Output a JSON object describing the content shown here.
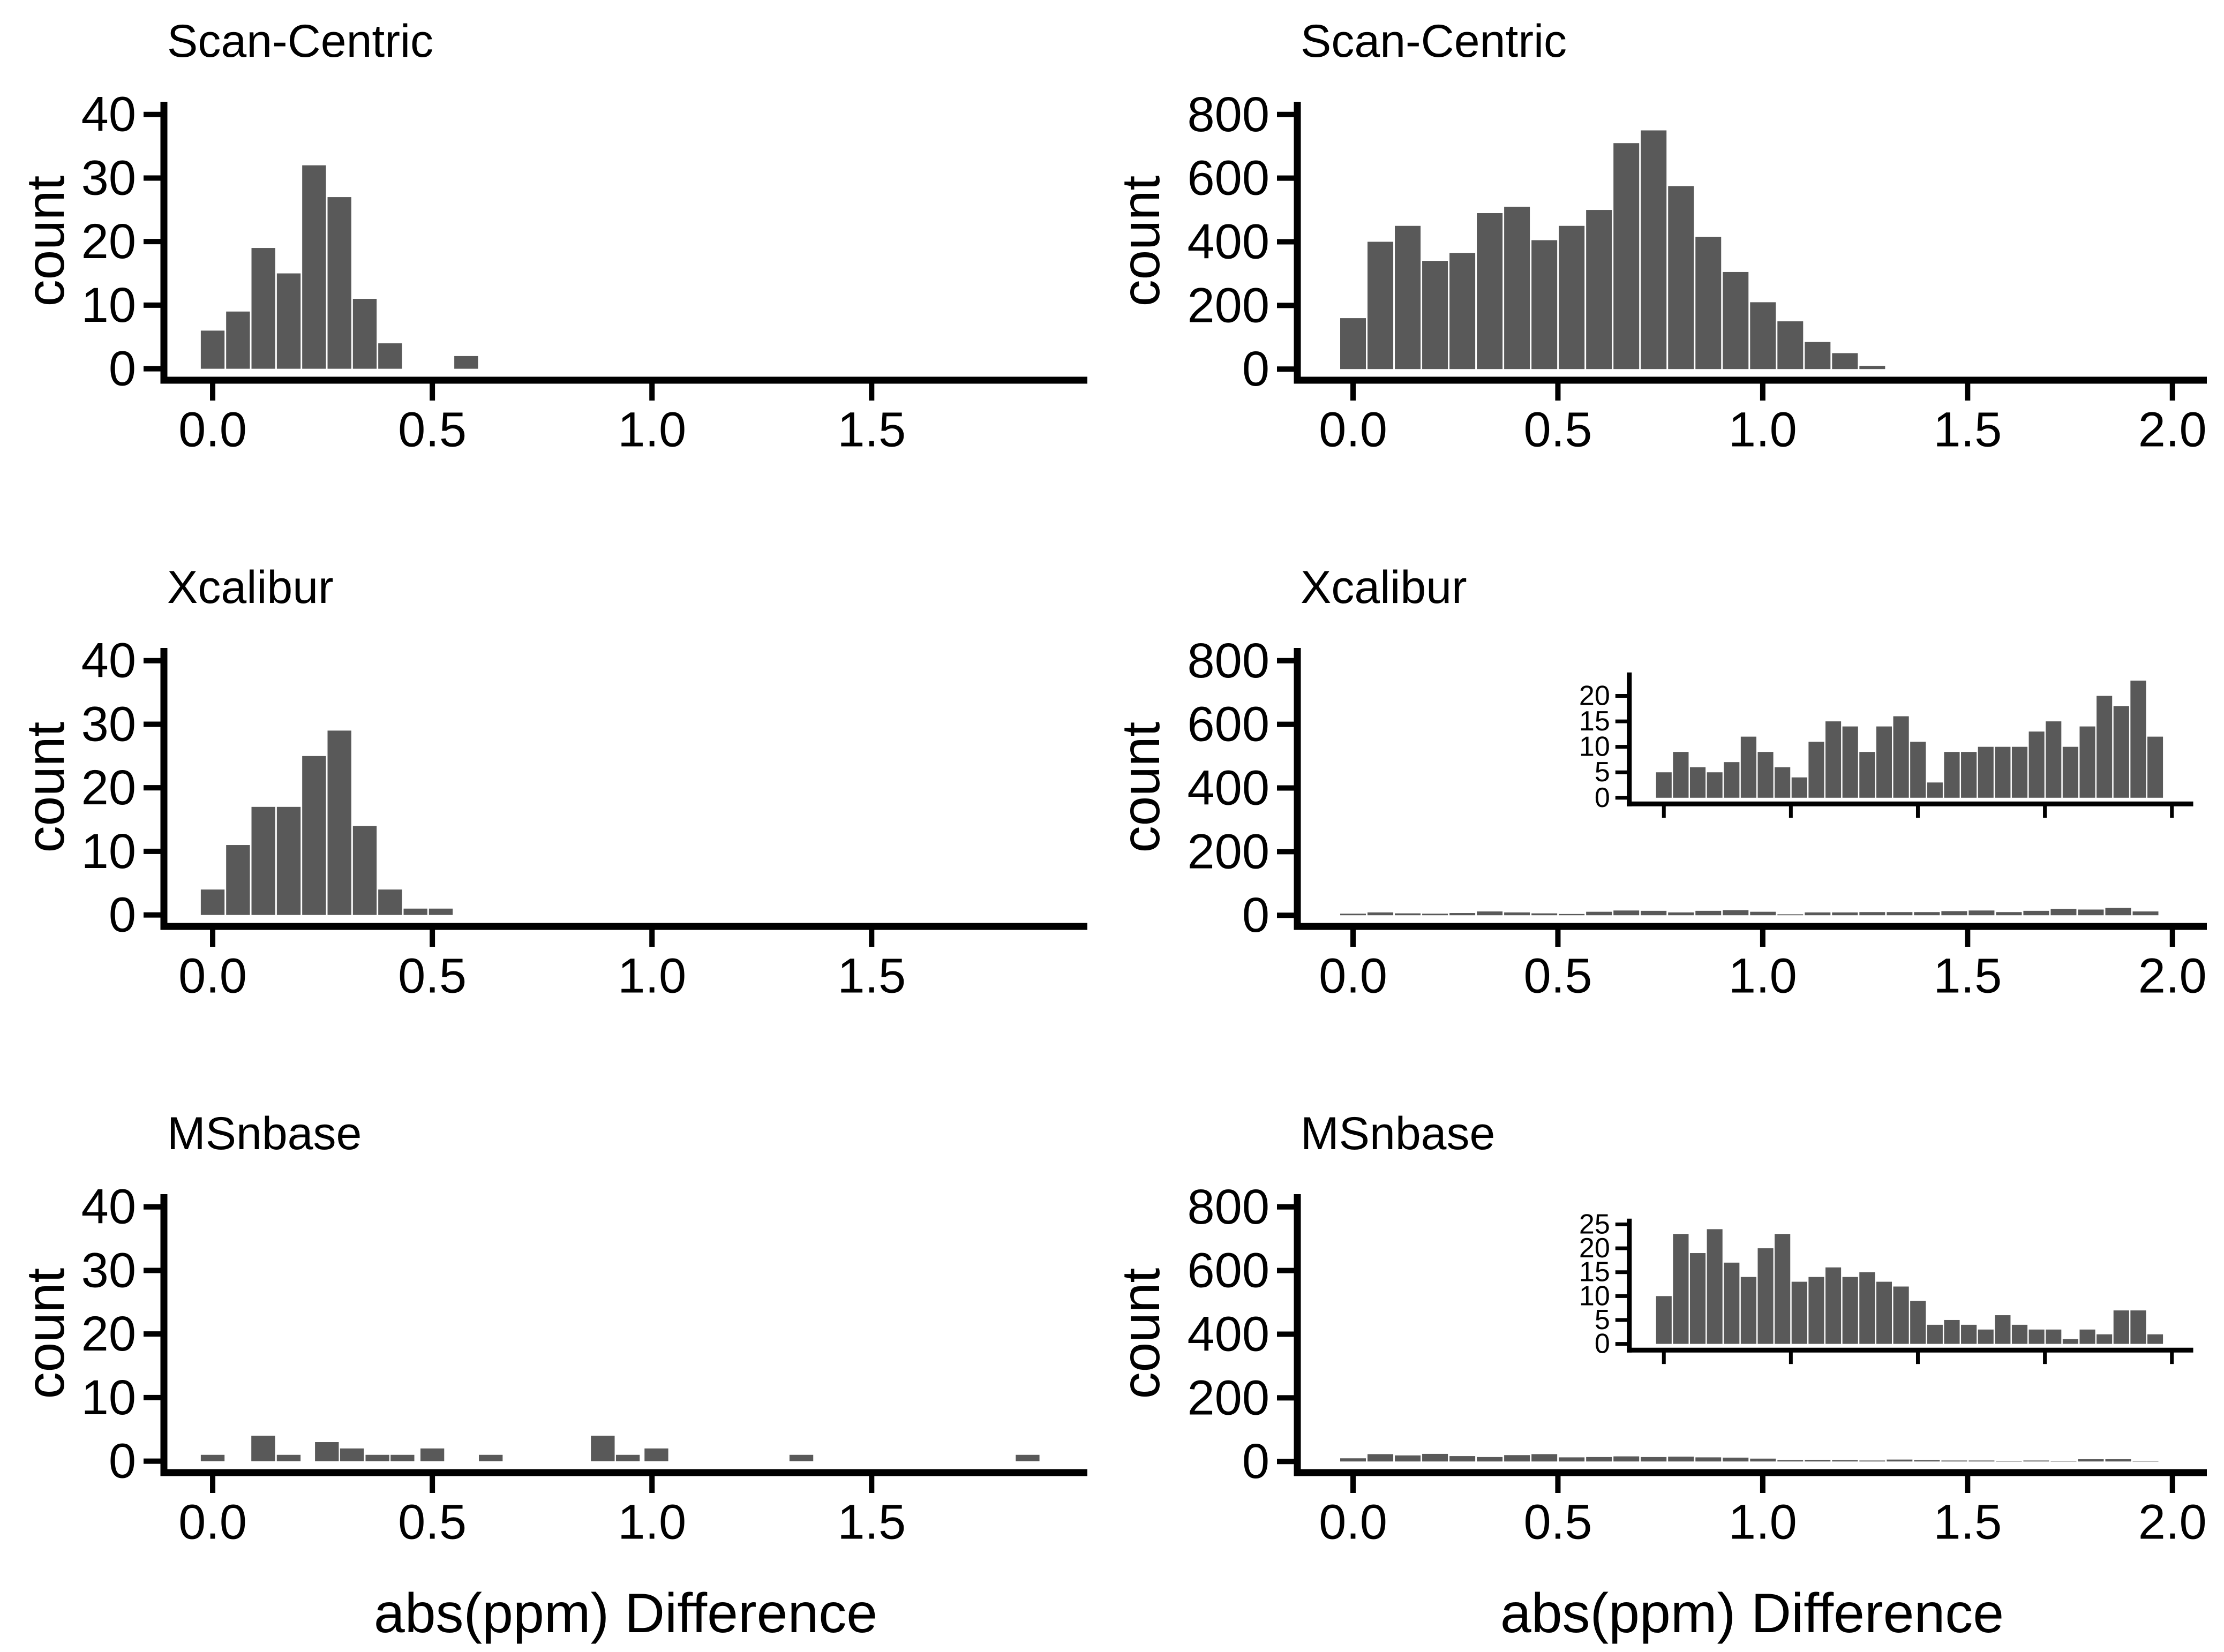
{
  "figure": {
    "background": "#ffffff",
    "bar_fill": "#595959",
    "axis_color": "#000000",
    "text_color": "#000000",
    "ylabel": "count",
    "xlabel": "abs(ppm) Difference"
  },
  "chart_data": [
    {
      "id": "scan-centric-small",
      "type": "bar",
      "title": "Scan-Centric",
      "col": 0,
      "row": 0,
      "ylabel": "count",
      "xlabel": "abs(ppm) Difference",
      "xlim": [
        -0.111,
        1.991
      ],
      "ylim": [
        -1.8,
        42
      ],
      "xticks": [
        0,
        0.5,
        1.0,
        1.5
      ],
      "xtick_labels": [
        "0.0",
        "0.5",
        "1.0",
        "1.5"
      ],
      "yticks": [
        0,
        10,
        20,
        30,
        40
      ],
      "ytick_labels": [
        "0",
        "10",
        "20",
        "30",
        "40"
      ],
      "bin_width": 0.0577,
      "bars": [
        [
          0.0,
          6
        ],
        [
          0.0577,
          9
        ],
        [
          0.1154,
          19
        ],
        [
          0.1731,
          15
        ],
        [
          0.2308,
          32
        ],
        [
          0.2885,
          27
        ],
        [
          0.3462,
          11
        ],
        [
          0.4039,
          4
        ],
        [
          0.577,
          2
        ]
      ],
      "inset": null
    },
    {
      "id": "scan-centric-all",
      "type": "bar",
      "title": "Scan-Centric",
      "col": 1,
      "row": 0,
      "ylabel": "count",
      "xlabel": "abs(ppm) Difference",
      "xlim": [
        -0.136,
        2.084
      ],
      "ylim": [
        -35,
        840
      ],
      "xticks": [
        0,
        0.5,
        1.0,
        1.5,
        2.0
      ],
      "xtick_labels": [
        "0.0",
        "0.5",
        "1.0",
        "1.5",
        "2.0"
      ],
      "yticks": [
        0,
        200,
        400,
        600,
        800
      ],
      "ytick_labels": [
        "0",
        "200",
        "400",
        "600",
        "800"
      ],
      "bin_width": 0.0667,
      "bars": [
        [
          0.0,
          160
        ],
        [
          0.0667,
          400
        ],
        [
          0.1334,
          450
        ],
        [
          0.2001,
          340
        ],
        [
          0.2668,
          365
        ],
        [
          0.3335,
          490
        ],
        [
          0.4002,
          510
        ],
        [
          0.4669,
          405
        ],
        [
          0.5336,
          450
        ],
        [
          0.6003,
          500
        ],
        [
          0.667,
          710
        ],
        [
          0.7337,
          750
        ],
        [
          0.8004,
          575
        ],
        [
          0.8671,
          415
        ],
        [
          0.9338,
          305
        ],
        [
          1.0005,
          210
        ],
        [
          1.0672,
          150
        ],
        [
          1.1339,
          85
        ],
        [
          1.2006,
          50
        ],
        [
          1.2673,
          10
        ]
      ],
      "inset": null
    },
    {
      "id": "xcalibur-small",
      "type": "bar",
      "title": "Xcalibur",
      "col": 0,
      "row": 1,
      "ylabel": "count",
      "xlabel": "abs(ppm) Difference",
      "xlim": [
        -0.111,
        1.991
      ],
      "ylim": [
        -1.8,
        42
      ],
      "xticks": [
        0,
        0.5,
        1.0,
        1.5
      ],
      "xtick_labels": [
        "0.0",
        "0.5",
        "1.0",
        "1.5"
      ],
      "yticks": [
        0,
        10,
        20,
        30,
        40
      ],
      "ytick_labels": [
        "0",
        "10",
        "20",
        "30",
        "40"
      ],
      "bin_width": 0.0577,
      "bars": [
        [
          0.0,
          4
        ],
        [
          0.0577,
          11
        ],
        [
          0.1154,
          17
        ],
        [
          0.1731,
          17
        ],
        [
          0.2308,
          25
        ],
        [
          0.2885,
          29
        ],
        [
          0.3462,
          14
        ],
        [
          0.4039,
          4
        ],
        [
          0.4616,
          1
        ],
        [
          0.5193,
          1
        ]
      ],
      "inset": null
    },
    {
      "id": "xcalibur-all",
      "type": "bar",
      "title": "Xcalibur",
      "col": 1,
      "row": 1,
      "ylabel": "count",
      "xlabel": "abs(ppm) Difference",
      "xlim": [
        -0.136,
        2.084
      ],
      "ylim": [
        -35,
        840
      ],
      "xticks": [
        0,
        0.5,
        1.0,
        1.5,
        2.0
      ],
      "xtick_labels": [
        "0.0",
        "0.5",
        "1.0",
        "1.5",
        "2.0"
      ],
      "yticks": [
        0,
        200,
        400,
        600,
        800
      ],
      "ytick_labels": [
        "0",
        "200",
        "400",
        "600",
        "800"
      ],
      "bin_width": 0.0667,
      "bars": [
        [
          0.0,
          5
        ],
        [
          0.0667,
          9
        ],
        [
          0.1334,
          6
        ],
        [
          0.2001,
          5
        ],
        [
          0.2668,
          7
        ],
        [
          0.3335,
          12
        ],
        [
          0.4002,
          9
        ],
        [
          0.4669,
          6
        ],
        [
          0.5336,
          4
        ],
        [
          0.6003,
          11
        ],
        [
          0.667,
          15
        ],
        [
          0.7337,
          14
        ],
        [
          0.8004,
          9
        ],
        [
          0.8671,
          14
        ],
        [
          0.9338,
          16
        ],
        [
          1.0005,
          11
        ],
        [
          1.0672,
          3
        ],
        [
          1.1339,
          9
        ],
        [
          1.2006,
          9
        ],
        [
          1.2673,
          10
        ],
        [
          1.334,
          10
        ],
        [
          1.4007,
          10
        ],
        [
          1.4674,
          13
        ],
        [
          1.5341,
          15
        ],
        [
          1.6008,
          10
        ],
        [
          1.6675,
          14
        ],
        [
          1.7342,
          20
        ],
        [
          1.8009,
          18
        ],
        [
          1.8676,
          23
        ],
        [
          1.9343,
          12
        ]
      ],
      "inset": {
        "ylim": [
          -1.2,
          24.6
        ],
        "yticks": [
          0,
          5,
          10,
          15,
          20
        ],
        "ytick_labels": [
          "0",
          "5",
          "10",
          "15",
          "20"
        ],
        "xticks": [
          0,
          0.5,
          1.0,
          1.5,
          2.0
        ]
      }
    },
    {
      "id": "msnbase-small",
      "type": "bar",
      "title": "MSnbase",
      "col": 0,
      "row": 2,
      "ylabel": "count",
      "xlabel": "abs(ppm) Difference",
      "xlim": [
        -0.111,
        1.991
      ],
      "ylim": [
        -1.8,
        42
      ],
      "xticks": [
        0,
        0.5,
        1.0,
        1.5
      ],
      "xtick_labels": [
        "0.0",
        "0.5",
        "1.0",
        "1.5"
      ],
      "yticks": [
        0,
        10,
        20,
        30,
        40
      ],
      "ytick_labels": [
        "0",
        "10",
        "20",
        "30",
        "40"
      ],
      "bin_width": 0.0577,
      "bars": [
        [
          0.0,
          1
        ],
        [
          0.115,
          4
        ],
        [
          0.173,
          1
        ],
        [
          0.26,
          3
        ],
        [
          0.317,
          2
        ],
        [
          0.375,
          1
        ],
        [
          0.432,
          1
        ],
        [
          0.5,
          2
        ],
        [
          0.633,
          1
        ],
        [
          0.888,
          4
        ],
        [
          0.945,
          1
        ],
        [
          1.01,
          2
        ],
        [
          1.34,
          1
        ],
        [
          1.855,
          1
        ]
      ],
      "inset": null
    },
    {
      "id": "msnbase-all",
      "type": "bar",
      "title": "MSnbase",
      "col": 1,
      "row": 2,
      "ylabel": "count",
      "xlabel": "abs(ppm) Difference",
      "xlim": [
        -0.136,
        2.084
      ],
      "ylim": [
        -35,
        840
      ],
      "xticks": [
        0,
        0.5,
        1.0,
        1.5,
        2.0
      ],
      "xtick_labels": [
        "0.0",
        "0.5",
        "1.0",
        "1.5",
        "2.0"
      ],
      "yticks": [
        0,
        200,
        400,
        600,
        800
      ],
      "ytick_labels": [
        "0",
        "200",
        "400",
        "600",
        "800"
      ],
      "bin_width": 0.0667,
      "bars": [
        [
          0.0,
          10
        ],
        [
          0.0667,
          23
        ],
        [
          0.1334,
          19
        ],
        [
          0.2001,
          24
        ],
        [
          0.2668,
          17
        ],
        [
          0.3335,
          14
        ],
        [
          0.4002,
          20
        ],
        [
          0.4669,
          23
        ],
        [
          0.5336,
          13
        ],
        [
          0.6003,
          14
        ],
        [
          0.667,
          16
        ],
        [
          0.7337,
          14
        ],
        [
          0.8004,
          15
        ],
        [
          0.8671,
          13
        ],
        [
          0.9338,
          12
        ],
        [
          1.0005,
          9
        ],
        [
          1.0672,
          4
        ],
        [
          1.1339,
          5
        ],
        [
          1.2006,
          4
        ],
        [
          1.2673,
          3
        ],
        [
          1.334,
          6
        ],
        [
          1.4007,
          4
        ],
        [
          1.4674,
          3
        ],
        [
          1.5341,
          3
        ],
        [
          1.6008,
          1
        ],
        [
          1.6675,
          3
        ],
        [
          1.7342,
          2
        ],
        [
          1.8009,
          7
        ],
        [
          1.8676,
          7
        ],
        [
          1.9343,
          2
        ]
      ],
      "inset": {
        "ylim": [
          -1.3,
          26.2
        ],
        "yticks": [
          0,
          5,
          10,
          15,
          20,
          25
        ],
        "ytick_labels": [
          "0",
          "5",
          "10",
          "15",
          "20",
          "25"
        ],
        "xticks": [
          0,
          0.5,
          1.0,
          1.5,
          2.0
        ]
      }
    }
  ]
}
